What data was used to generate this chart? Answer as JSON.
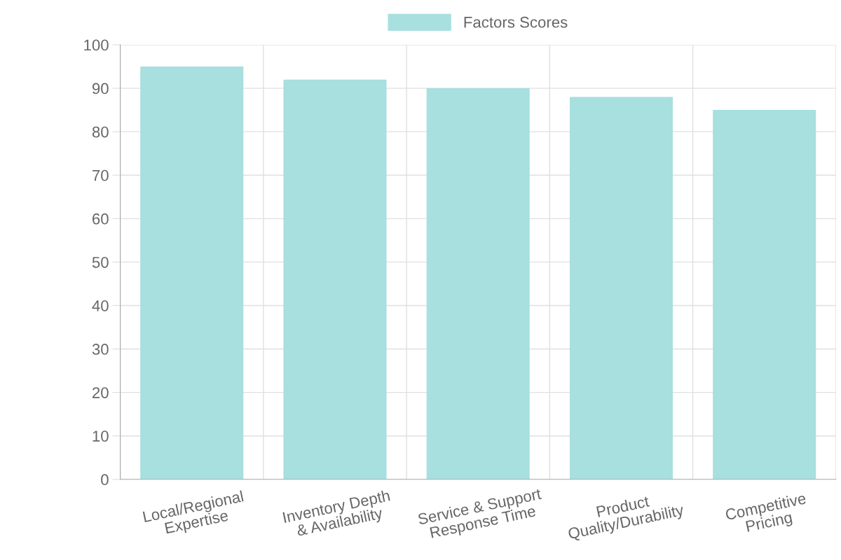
{
  "chart_data": {
    "type": "bar",
    "categories": [
      "Local/Regional Expertise",
      "Inventory Depth & Availability",
      "Service & Support Response Time",
      "Product Quality/Durability",
      "Competitive Pricing"
    ],
    "series": [
      {
        "name": "Factors Scores",
        "color": "#a8dfdf",
        "values": [
          95,
          92,
          90,
          88,
          85
        ]
      }
    ],
    "ylim": [
      0,
      100
    ],
    "yticks": [
      0,
      10,
      20,
      30,
      40,
      50,
      60,
      70,
      80,
      90,
      100
    ],
    "grid": true,
    "legend": "top"
  }
}
